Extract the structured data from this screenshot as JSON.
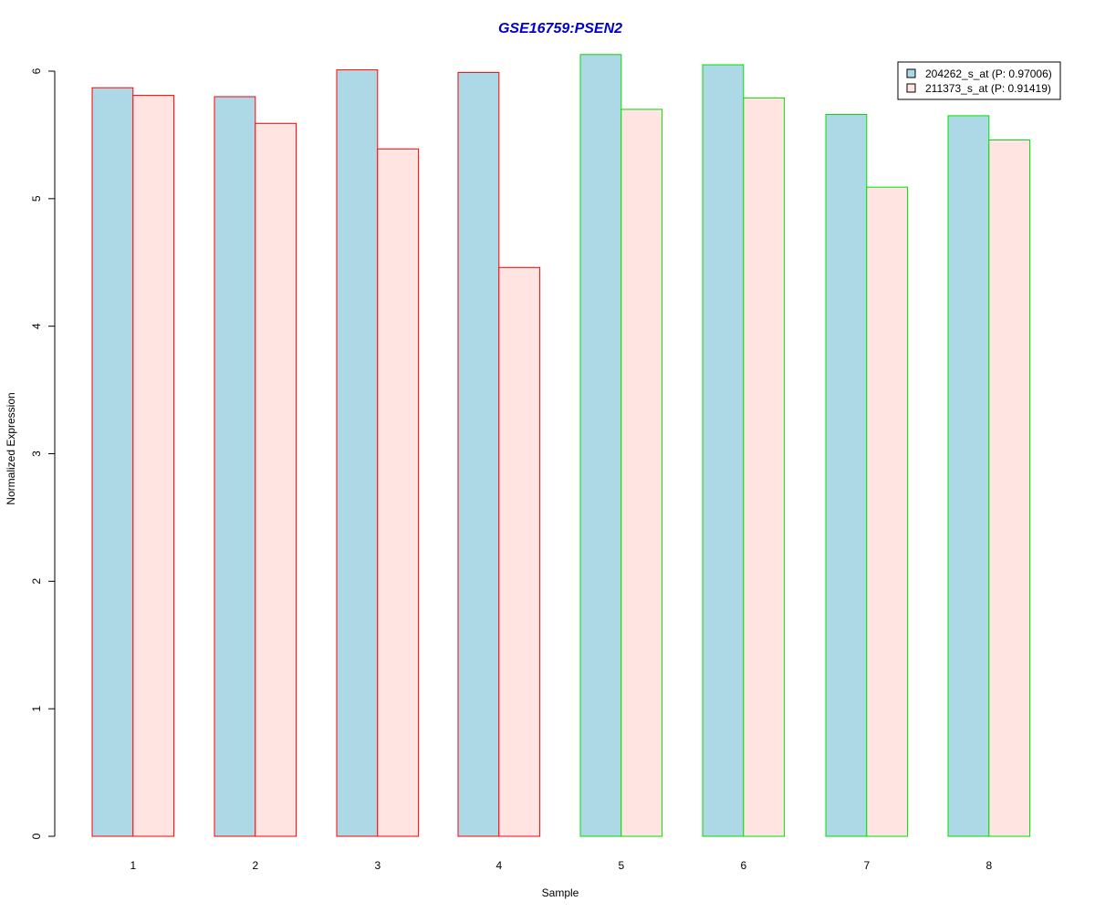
{
  "chart_data": {
    "type": "bar",
    "title": "GSE16759:PSEN2",
    "xlabel": "Sample",
    "ylabel": "Normalized Expression",
    "categories": [
      "1",
      "2",
      "3",
      "4",
      "5",
      "6",
      "7",
      "8"
    ],
    "ylim": [
      0,
      6
    ],
    "y_ticks": [
      "0",
      "1",
      "2",
      "3",
      "4",
      "5",
      "6"
    ],
    "series": [
      {
        "name": "204262_s_at (P: 0.97006)",
        "values": [
          5.87,
          5.8,
          6.01,
          5.99,
          6.13,
          6.05,
          5.66,
          5.65
        ]
      },
      {
        "name": "211373_s_at (P: 0.91419)",
        "values": [
          5.81,
          5.59,
          5.39,
          4.46,
          5.7,
          5.79,
          5.09,
          5.46
        ]
      }
    ],
    "grid": false,
    "legend": "top-right",
    "colors": {
      "title": "#0000CC",
      "series_fill": [
        "#ADD8E6",
        "#FFE4E1"
      ],
      "group_border": [
        "#FF0000",
        "#FF0000",
        "#FF0000",
        "#FF0000",
        "#00DD00",
        "#00DD00",
        "#00DD00",
        "#00DD00"
      ]
    }
  }
}
